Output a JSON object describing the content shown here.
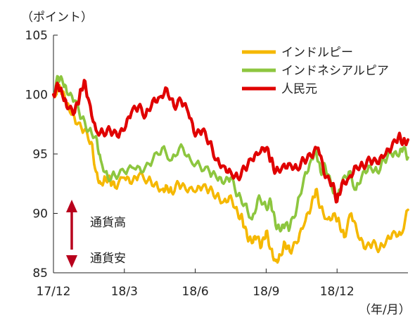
{
  "chart_data": {
    "type": "line",
    "title": "",
    "ylabel": "（ポイント）",
    "xlabel": "（年/月）",
    "ylim": [
      85,
      105
    ],
    "yticks": [
      85,
      90,
      95,
      100,
      105
    ],
    "xlim": [
      0,
      15
    ],
    "xtick_positions": [
      0,
      3,
      6,
      9,
      12
    ],
    "xtick_labels": [
      "17/12",
      "18/3",
      "18/6",
      "18/9",
      "18/12"
    ],
    "grid": false,
    "legend_position": "top-right",
    "annotations": {
      "up": "通貨高",
      "down": "通貨安"
    },
    "series": [
      {
        "name": "インドルピー",
        "color": "#F5B800",
        "x": [
          0,
          0.3,
          0.5,
          0.7,
          1.0,
          1.3,
          1.6,
          1.8,
          2.0,
          2.2,
          2.4,
          2.6,
          3.0,
          3.3,
          3.6,
          4.0,
          4.3,
          4.6,
          4.8,
          5.0,
          5.3,
          5.6,
          6.0,
          6.3,
          6.6,
          6.9,
          7.2,
          7.5,
          7.8,
          8.0,
          8.2,
          8.4,
          8.6,
          8.8,
          9.0,
          9.2,
          9.4,
          9.6,
          9.8,
          10.0,
          10.3,
          10.6,
          10.9,
          11.1,
          11.3,
          11.6,
          11.9,
          12.1,
          12.3,
          12.6,
          12.9,
          13.2,
          13.5,
          13.8,
          14.1,
          14.4,
          14.7,
          15.0
        ],
        "values": [
          100.0,
          100.6,
          99.5,
          98.5,
          97.5,
          97.0,
          96.0,
          93.5,
          92.5,
          93.0,
          92.8,
          92.2,
          93.0,
          92.5,
          93.2,
          92.8,
          92.5,
          92.0,
          92.3,
          91.8,
          92.5,
          92.0,
          91.8,
          92.2,
          92.0,
          91.5,
          91.0,
          91.5,
          90.0,
          89.5,
          88.0,
          87.5,
          88.0,
          87.2,
          88.5,
          87.0,
          86.0,
          86.5,
          87.5,
          86.8,
          87.5,
          89.0,
          90.5,
          92.0,
          90.5,
          89.5,
          90.0,
          89.2,
          88.0,
          90.0,
          88.0,
          87.0,
          87.5,
          87.0,
          87.8,
          88.5,
          88.2,
          90.3
        ]
      },
      {
        "name": "インドネシアルピア",
        "color": "#8DC63F",
        "x": [
          0,
          0.2,
          0.4,
          0.6,
          0.9,
          1.2,
          1.5,
          1.8,
          2.0,
          2.3,
          2.6,
          3.0,
          3.4,
          3.8,
          4.2,
          4.6,
          5.0,
          5.4,
          5.8,
          6.2,
          6.6,
          6.9,
          7.2,
          7.5,
          7.8,
          8.1,
          8.4,
          8.7,
          9.0,
          9.2,
          9.4,
          9.6,
          9.8,
          10.0,
          10.3,
          10.6,
          10.9,
          11.1,
          11.3,
          11.5,
          11.8,
          12.0,
          12.2,
          12.5,
          12.8,
          13.1,
          13.4,
          13.7,
          14.0,
          14.3,
          14.6,
          14.8,
          15.0
        ],
        "values": [
          100.0,
          101.5,
          101.0,
          100.0,
          99.5,
          98.0,
          97.0,
          96.5,
          94.5,
          93.0,
          93.2,
          93.5,
          93.8,
          93.5,
          94.5,
          95.5,
          94.5,
          95.8,
          94.5,
          94.0,
          93.5,
          93.0,
          92.5,
          93.0,
          91.5,
          90.8,
          89.5,
          91.5,
          90.5,
          91.0,
          89.0,
          88.5,
          89.0,
          88.8,
          90.5,
          93.0,
          94.5,
          95.5,
          93.5,
          94.0,
          92.0,
          91.0,
          92.5,
          93.5,
          92.0,
          93.5,
          94.0,
          93.5,
          94.5,
          95.0,
          94.8,
          95.5,
          94.7
        ]
      },
      {
        "name": "人民元",
        "color": "#E00000",
        "x": [
          0,
          0.2,
          0.4,
          0.6,
          0.9,
          1.1,
          1.3,
          1.5,
          1.8,
          2.1,
          2.4,
          2.7,
          3.0,
          3.3,
          3.6,
          3.9,
          4.2,
          4.5,
          4.8,
          5.1,
          5.4,
          5.7,
          6.0,
          6.3,
          6.6,
          6.9,
          7.2,
          7.5,
          7.8,
          8.1,
          8.4,
          8.7,
          9.0,
          9.2,
          9.4,
          9.7,
          10.0,
          10.3,
          10.6,
          10.9,
          11.2,
          11.5,
          11.8,
          12.0,
          12.2,
          12.5,
          12.8,
          13.1,
          13.4,
          13.7,
          14.0,
          14.3,
          14.6,
          14.8,
          15.0
        ],
        "values": [
          100.0,
          100.8,
          99.8,
          98.8,
          98.5,
          99.8,
          101.2,
          99.5,
          97.0,
          96.8,
          97.0,
          96.5,
          97.0,
          98.5,
          99.0,
          98.2,
          99.5,
          99.8,
          100.5,
          99.0,
          99.5,
          98.5,
          96.5,
          97.0,
          96.0,
          94.5,
          94.0,
          93.5,
          93.0,
          93.8,
          94.5,
          95.0,
          95.5,
          94.5,
          93.5,
          94.0,
          94.2,
          93.8,
          94.5,
          94.8,
          95.5,
          93.0,
          92.5,
          91.0,
          92.5,
          93.0,
          94.0,
          94.0,
          94.5,
          94.2,
          94.8,
          95.5,
          96.5,
          96.0,
          96.2
        ]
      }
    ]
  }
}
